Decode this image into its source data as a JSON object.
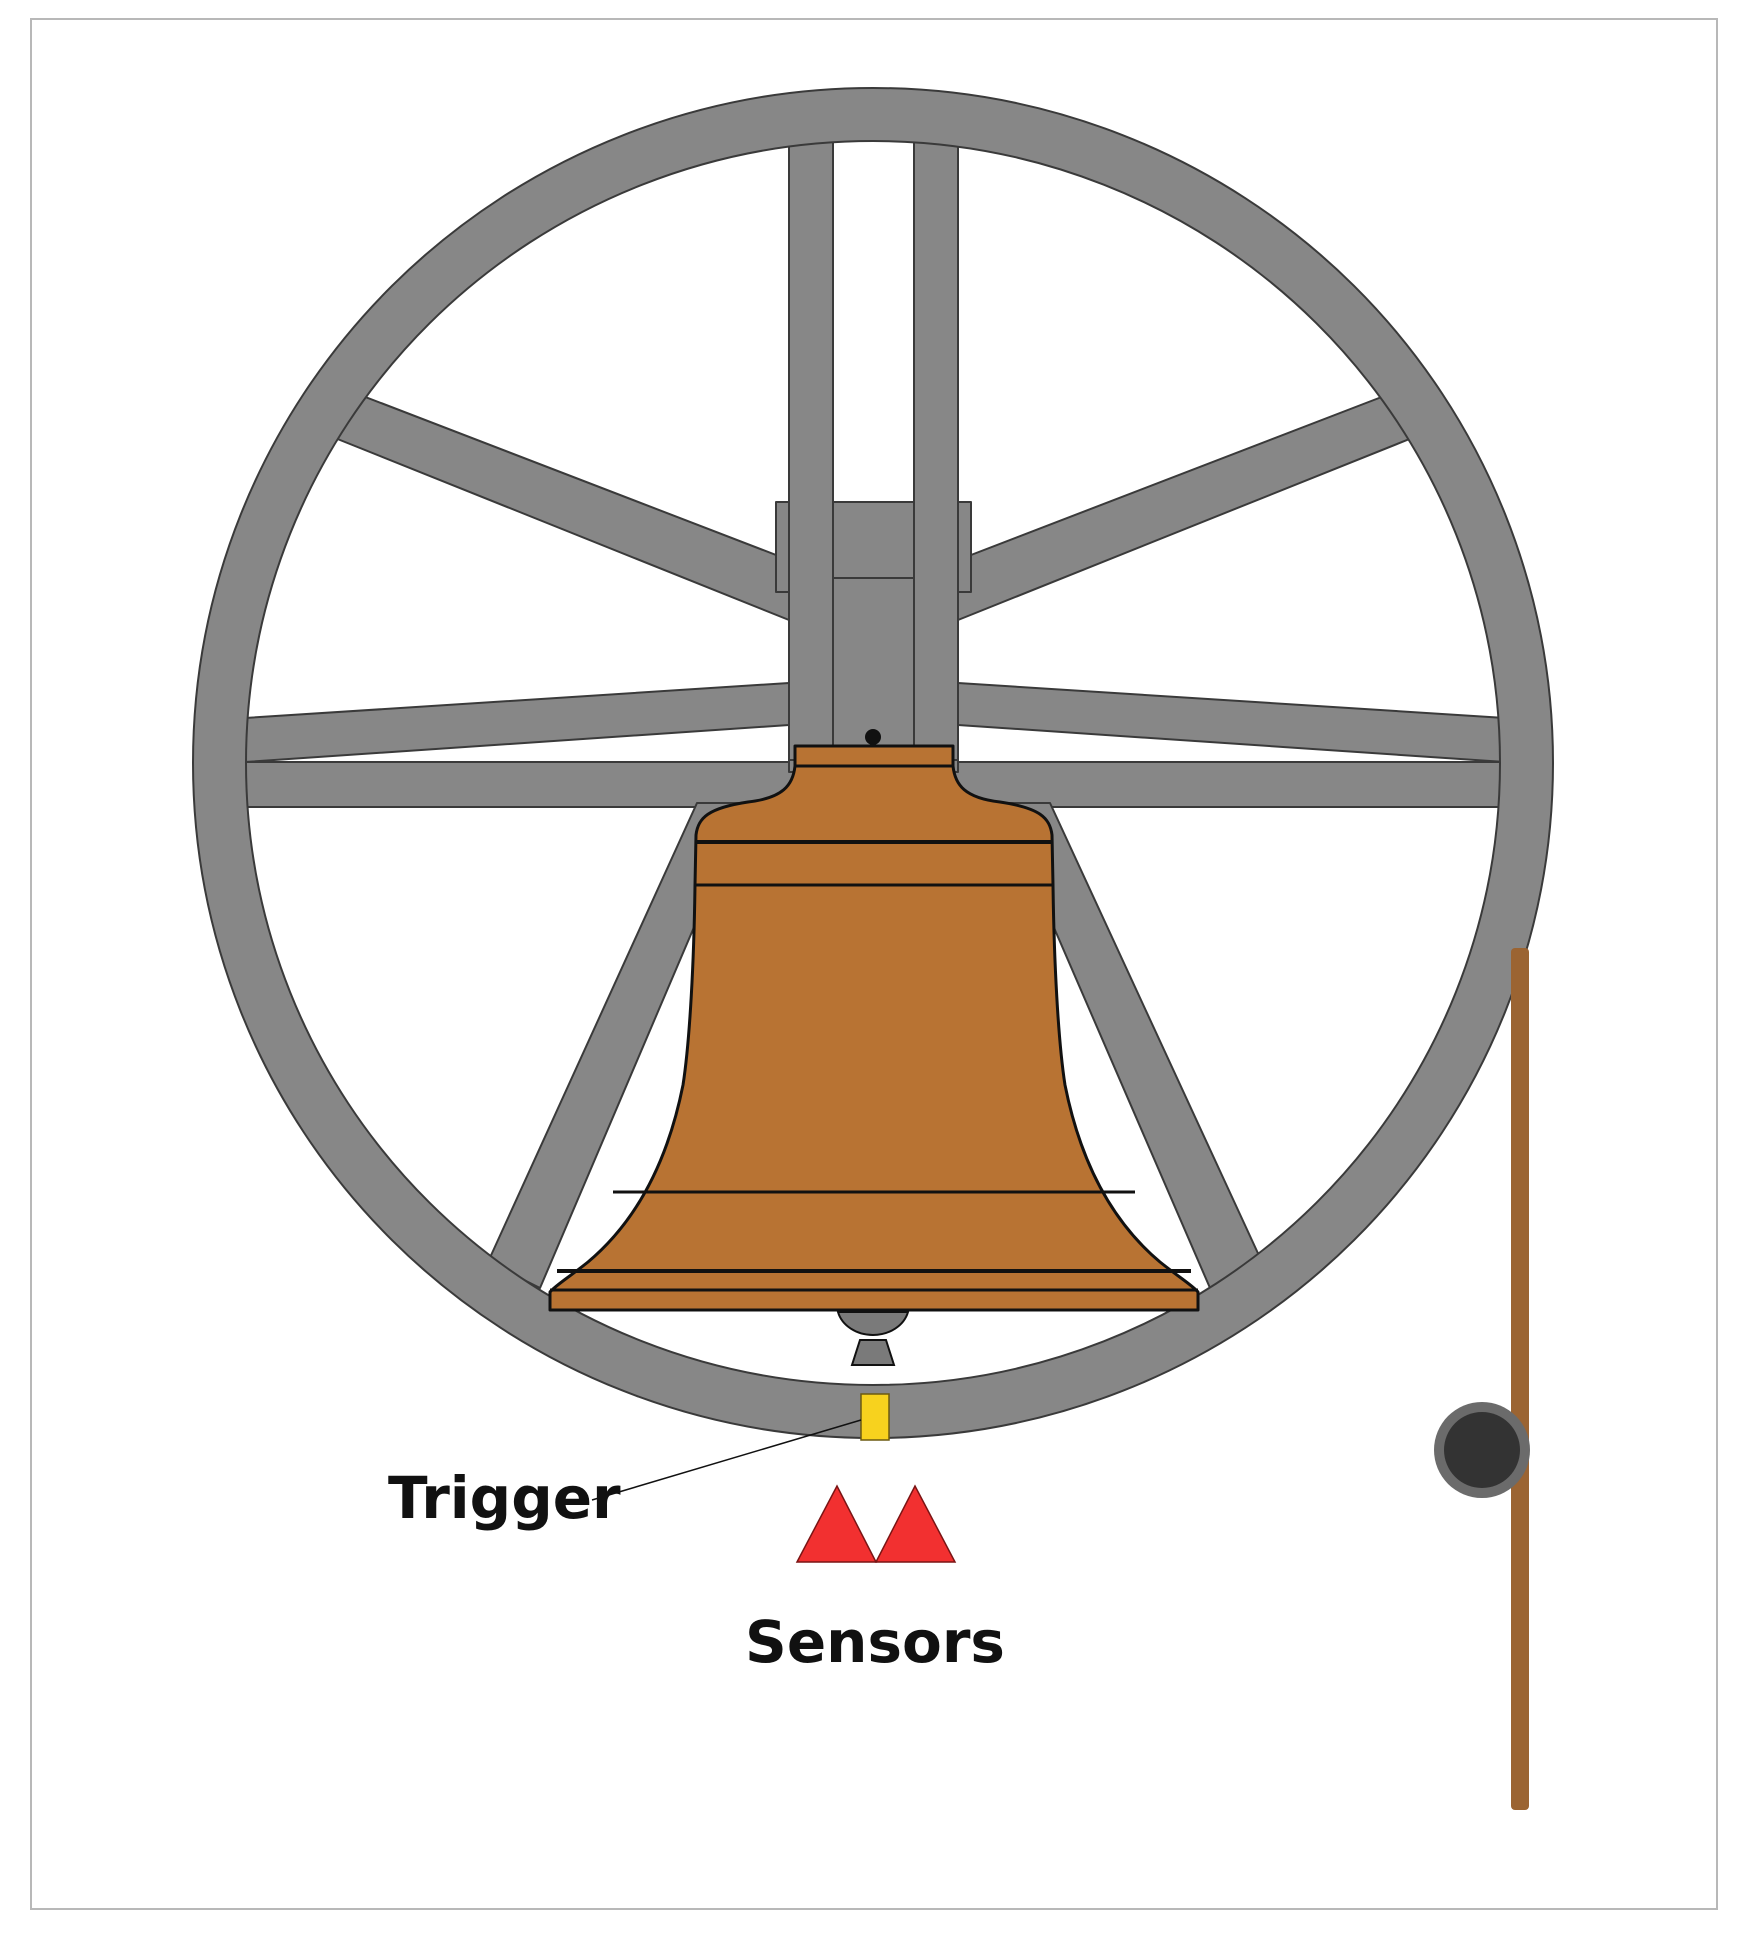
{
  "labels": {
    "trigger": "Trigger",
    "sensors": "Sensors"
  },
  "colors": {
    "frame_gray": "#878787",
    "bell_bronze": "#b87333",
    "rope_brown": "#9b6432",
    "trigger_yellow": "#f7d21e",
    "sensor_red": "#f23030",
    "pulley_dark": "#333333",
    "pulley_rim": "#6b6b6b"
  },
  "icons": {
    "wheel": "bell-wheel-icon",
    "bell": "bell-icon",
    "clapper": "clapper-icon",
    "pulley": "pulley-icon",
    "rope": "rope-icon",
    "trigger": "trigger-marker-icon",
    "sensors": "sensor-triangle-icon"
  }
}
